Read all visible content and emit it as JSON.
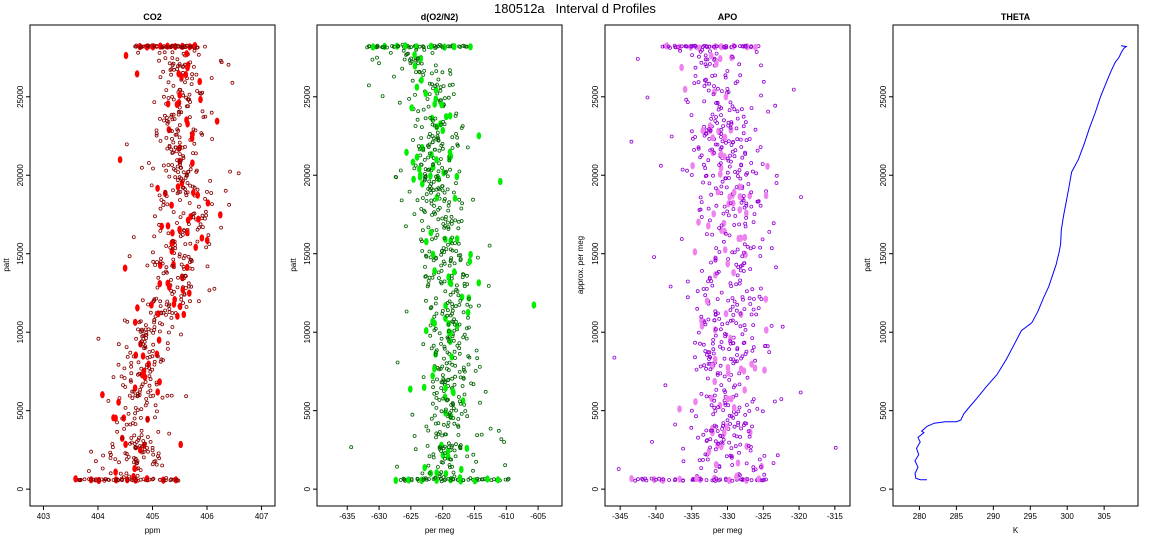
{
  "figure": {
    "title": "180512a   Interval d Profiles"
  },
  "chart_data": [
    {
      "type": "scatter",
      "title": "CO2",
      "xlabel": "ppm",
      "ylabel": "patt",
      "xlim": [
        402.9,
        407.1
      ],
      "ylim": [
        -500,
        29000
      ],
      "xticks": [
        403,
        404,
        405,
        406,
        407
      ],
      "yticks": [
        0,
        5000,
        10000,
        15000,
        20000,
        25000
      ],
      "color": "#ff0000",
      "edge": "#8b0000",
      "center_profile": [
        [
          600,
          404.5
        ],
        [
          2000,
          404.6
        ],
        [
          4000,
          404.75
        ],
        [
          6000,
          404.8
        ],
        [
          8000,
          404.85
        ],
        [
          10000,
          404.9
        ],
        [
          12000,
          405.35
        ],
        [
          14000,
          405.45
        ],
        [
          16000,
          405.65
        ],
        [
          18000,
          405.6
        ],
        [
          20000,
          405.55
        ],
        [
          22000,
          405.45
        ],
        [
          24000,
          405.5
        ],
        [
          26000,
          405.55
        ],
        [
          28200,
          405.5
        ]
      ],
      "spread": 0.45,
      "band_top": {
        "y": 28200,
        "x_from": 404.7,
        "x_to": 405.8
      },
      "band_bottom": {
        "y": 600,
        "x_from": 403.6,
        "x_to": 405.5
      },
      "sample_count": 650,
      "seed": 11
    },
    {
      "type": "scatter",
      "title": "d(O2/N2)",
      "xlabel": "per meg",
      "ylabel": "patt",
      "xlim": [
        -638.5,
        -602.5
      ],
      "ylim": [
        -500,
        29000
      ],
      "xticks": [
        -635,
        -630,
        -625,
        -620,
        -615,
        -610,
        -605
      ],
      "yticks": [
        0,
        5000,
        10000,
        15000,
        20000,
        25000
      ],
      "color": "#00ee00",
      "edge": "#006400",
      "center_profile": [
        [
          600,
          -619
        ],
        [
          2000,
          -619
        ],
        [
          4000,
          -618.5
        ],
        [
          6000,
          -618.5
        ],
        [
          8000,
          -619
        ],
        [
          10000,
          -619
        ],
        [
          12000,
          -618.5
        ],
        [
          14000,
          -619
        ],
        [
          16000,
          -620
        ],
        [
          18000,
          -620.5
        ],
        [
          20000,
          -621.5
        ],
        [
          22000,
          -621
        ],
        [
          24000,
          -620.5
        ],
        [
          26000,
          -622
        ],
        [
          28200,
          -626
        ]
      ],
      "spread": 3.5,
      "band_top": {
        "y": 28200,
        "x_from": -632,
        "x_to": -616
      },
      "band_bottom": {
        "y": 600,
        "x_from": -627,
        "x_to": -610
      },
      "sample_count": 650,
      "seed": 23
    },
    {
      "type": "scatter",
      "title": "APO",
      "xlabel": "per meg",
      "ylabel": "approx. per meg",
      "xlim": [
        -346,
        -314
      ],
      "ylim": [
        -500,
        29000
      ],
      "xticks": [
        -345,
        -340,
        -335,
        -330,
        -325,
        -320,
        -315
      ],
      "yticks": [
        0,
        5000,
        10000,
        15000,
        20000,
        25000
      ],
      "color": "#ee82ee",
      "edge": "#9400d3",
      "center_profile": [
        [
          600,
          -330
        ],
        [
          2000,
          -330.5
        ],
        [
          4000,
          -330
        ],
        [
          6000,
          -330
        ],
        [
          8000,
          -330
        ],
        [
          10000,
          -330.5
        ],
        [
          12000,
          -330
        ],
        [
          14000,
          -329.5
        ],
        [
          16000,
          -329.5
        ],
        [
          18000,
          -329.5
        ],
        [
          20000,
          -330
        ],
        [
          22000,
          -330.5
        ],
        [
          24000,
          -330.5
        ],
        [
          26000,
          -331
        ],
        [
          28200,
          -333
        ]
      ],
      "spread": 4.5,
      "band_top": {
        "y": 28200,
        "x_from": -339,
        "x_to": -326
      },
      "band_bottom": {
        "y": 600,
        "x_from": -343,
        "x_to": -324
      },
      "sample_count": 650,
      "seed": 37
    },
    {
      "type": "line",
      "title": "THETA",
      "xlabel": "K",
      "ylabel": "patt",
      "xlim": [
        277.5,
        308.5
      ],
      "ylim": [
        -500,
        29000
      ],
      "xticks": [
        280,
        285,
        290,
        295,
        300,
        305
      ],
      "yticks": [
        0,
        5000,
        10000,
        15000,
        20000,
        25000
      ],
      "color": "#0000ff",
      "x": [
        281,
        280.1,
        279.5,
        279.4,
        279.8,
        279.4,
        279.9,
        279.6,
        280.1,
        279.8,
        280.6,
        280.3,
        281.0,
        282.0,
        283.5,
        285.0,
        285.6,
        286.0,
        286.7,
        287.8,
        289.0,
        290.5,
        291.8,
        292.8,
        293.8,
        295.2,
        296.0,
        296.8,
        297.5,
        298.0,
        298.5,
        298.9,
        299.1,
        299.2,
        299.5,
        299.9,
        300.3,
        300.6,
        301.5,
        302.3,
        303.0,
        303.8,
        304.5,
        305.2,
        305.9,
        306.5,
        307.0,
        307.4,
        307.7,
        308.0,
        307.3
      ],
      "y": [
        600,
        600,
        700,
        1000,
        1400,
        1800,
        2200,
        2600,
        3000,
        3300,
        3600,
        3700,
        4000,
        4200,
        4300,
        4300,
        4400,
        4800,
        5200,
        5800,
        6500,
        7300,
        8300,
        9200,
        10100,
        10600,
        11300,
        12200,
        12900,
        13600,
        14300,
        15100,
        15600,
        16500,
        17400,
        18400,
        19400,
        20200,
        21000,
        22000,
        23000,
        24000,
        25000,
        25800,
        26600,
        27200,
        27500,
        27900,
        28100,
        28200,
        28250
      ]
    }
  ]
}
